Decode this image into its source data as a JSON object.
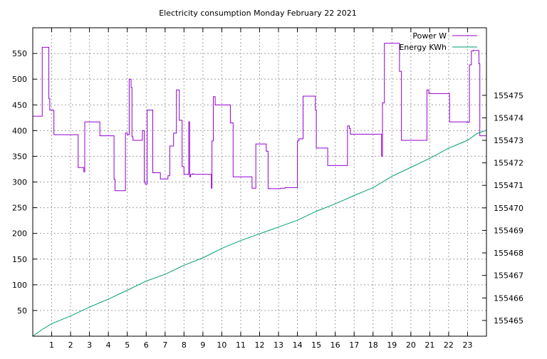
{
  "chart_data": {
    "type": "line",
    "title": "Electricity consumption Monday February 22 2021",
    "xlabel": "",
    "ylabel": "",
    "y2label": "",
    "grid": true,
    "legend_position": "top-right",
    "xlim": [
      0,
      24
    ],
    "ylim": [
      0,
      600
    ],
    "y2lim": [
      155464.3,
      155478.0
    ],
    "x_ticks": [
      1,
      2,
      3,
      4,
      5,
      6,
      7,
      8,
      9,
      10,
      11,
      12,
      13,
      14,
      15,
      16,
      17,
      18,
      19,
      20,
      21,
      22,
      23
    ],
    "y_ticks": [
      50,
      100,
      150,
      200,
      250,
      300,
      350,
      400,
      450,
      500,
      550
    ],
    "y2_ticks": [
      155465,
      155466,
      155467,
      155468,
      155469,
      155470,
      155471,
      155472,
      155473,
      155474,
      155475
    ],
    "series": [
      {
        "name": "Power W",
        "axis": "left",
        "color": "#9400d3",
        "step": true,
        "x": [
          0,
          0.5,
          0.85,
          0.9,
          1.1,
          1.12,
          2.4,
          2.48,
          2.7,
          2.75,
          3.5,
          3.55,
          4.3,
          4.33,
          4.35,
          4.9,
          4.95,
          5.0,
          5.1,
          5.2,
          5.25,
          5.3,
          5.35,
          5.8,
          5.9,
          5.95,
          6.05,
          6.15,
          6.35,
          6.75,
          7.15,
          7.25,
          7.3,
          7.45,
          7.6,
          7.7,
          7.75,
          7.9,
          7.95,
          8.0,
          8.25,
          8.3,
          8.35,
          8.45,
          8.5,
          8.6,
          9.45,
          9.48,
          9.55,
          9.65,
          9.75,
          10.0,
          10.3,
          10.45,
          10.6,
          11.0,
          11.6,
          11.65,
          11.8,
          12.3,
          12.35,
          12.45,
          13.1,
          13.35,
          14.0,
          14.08,
          14.3,
          14.95,
          15.0,
          15.15,
          15.5,
          15.6,
          16.0,
          16.65,
          16.75,
          16.8,
          16.95,
          17.1,
          18.45,
          18.5,
          18.6,
          18.75,
          19.4,
          19.5,
          19.8,
          20.8,
          20.85,
          20.95,
          21.35,
          21.95,
          22.05,
          22.3,
          22.95,
          23.05,
          23.1,
          23.2,
          23.3,
          23.35,
          23.5,
          23.52,
          23.6,
          23.65,
          23.7,
          23.85,
          24.0
        ],
        "y": [
          428,
          562,
          462,
          440,
          438,
          392,
          328,
          328,
          320,
          417,
          417,
          390,
          305,
          305,
          283,
          395,
          395,
          392,
          500,
          484,
          388,
          381,
          381,
          400,
          300,
          296,
          440,
          440,
          318,
          306,
          312,
          370,
          370,
          395,
          479,
          479,
          420,
          330,
          330,
          315,
          417,
          310,
          315,
          316,
          315,
          315,
          288,
          380,
          466,
          450,
          450,
          450,
          450,
          415,
          310,
          310,
          288,
          288,
          374,
          374,
          360,
          287,
          288,
          289,
          380,
          384,
          467,
          440,
          366,
          366,
          366,
          332,
          332,
          409,
          404,
          393,
          393,
          393,
          350,
          454,
          570,
          570,
          515,
          381,
          381,
          381,
          479,
          472,
          472,
          472,
          417,
          417,
          416,
          417,
          528,
          555,
          556,
          556,
          556,
          556,
          530,
          390,
          390,
          390,
          390
        ]
      },
      {
        "name": "Energy KWh",
        "axis": "right",
        "color": "#009e73",
        "step": false,
        "x": [
          0,
          0.5,
          1.0,
          2.0,
          3.0,
          4.0,
          5.0,
          6.0,
          7.0,
          8.0,
          9.0,
          10.0,
          11.0,
          12.0,
          13.0,
          14.0,
          15.0,
          16.0,
          17.0,
          18.0,
          19.0,
          20.0,
          21.0,
          22.0,
          23.0,
          23.5,
          24.0
        ],
        "y": [
          155464.3,
          155464.6,
          155464.85,
          155465.2,
          155465.59,
          155465.95,
          155466.34,
          155466.75,
          155467.05,
          155467.45,
          155467.78,
          155468.2,
          155468.55,
          155468.85,
          155469.15,
          155469.45,
          155469.85,
          155470.18,
          155470.55,
          155470.9,
          155471.4,
          155471.8,
          155472.2,
          155472.65,
          155473.0,
          155473.3,
          155473.45
        ]
      }
    ]
  }
}
